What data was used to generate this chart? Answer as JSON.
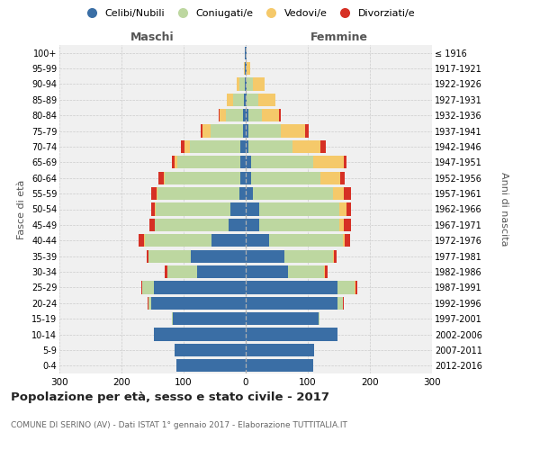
{
  "age_groups": [
    "0-4",
    "5-9",
    "10-14",
    "15-19",
    "20-24",
    "25-29",
    "30-34",
    "35-39",
    "40-44",
    "45-49",
    "50-54",
    "55-59",
    "60-64",
    "65-69",
    "70-74",
    "75-79",
    "80-84",
    "85-89",
    "90-94",
    "95-99",
    "100+"
  ],
  "birth_years": [
    "2012-2016",
    "2007-2011",
    "2002-2006",
    "1997-2001",
    "1992-1996",
    "1987-1991",
    "1982-1986",
    "1977-1981",
    "1972-1976",
    "1967-1971",
    "1962-1966",
    "1957-1961",
    "1952-1956",
    "1947-1951",
    "1942-1946",
    "1937-1941",
    "1932-1936",
    "1927-1931",
    "1922-1926",
    "1917-1921",
    "≤ 1916"
  ],
  "male": {
    "celibi": [
      112,
      115,
      148,
      118,
      152,
      148,
      78,
      88,
      55,
      28,
      25,
      10,
      8,
      8,
      8,
      5,
      4,
      3,
      2,
      1,
      1
    ],
    "coniugati": [
      0,
      0,
      0,
      1,
      4,
      18,
      48,
      68,
      108,
      118,
      120,
      132,
      122,
      102,
      82,
      52,
      28,
      18,
      8,
      1,
      0
    ],
    "vedovi": [
      0,
      0,
      0,
      0,
      0,
      0,
      0,
      0,
      1,
      1,
      2,
      2,
      2,
      4,
      8,
      12,
      10,
      10,
      4,
      1,
      0
    ],
    "divorziati": [
      0,
      0,
      0,
      0,
      2,
      2,
      4,
      4,
      8,
      8,
      5,
      8,
      8,
      5,
      6,
      4,
      2,
      0,
      0,
      0,
      0
    ]
  },
  "female": {
    "nubili": [
      108,
      110,
      148,
      118,
      148,
      148,
      68,
      62,
      38,
      22,
      22,
      12,
      8,
      8,
      4,
      4,
      4,
      2,
      2,
      1,
      1
    ],
    "coniugate": [
      0,
      0,
      0,
      1,
      8,
      28,
      58,
      78,
      118,
      128,
      128,
      128,
      112,
      100,
      72,
      52,
      22,
      18,
      10,
      1,
      0
    ],
    "vedove": [
      0,
      0,
      0,
      0,
      0,
      1,
      2,
      2,
      4,
      8,
      12,
      18,
      32,
      50,
      45,
      40,
      28,
      28,
      18,
      5,
      1
    ],
    "divorziate": [
      0,
      0,
      0,
      0,
      2,
      2,
      4,
      4,
      8,
      12,
      8,
      12,
      8,
      4,
      8,
      6,
      2,
      0,
      0,
      0,
      0
    ]
  },
  "colors": {
    "celibi": "#3A6EA5",
    "coniugati": "#BDD7A0",
    "vedovi": "#F5C96A",
    "divorziati": "#D63025"
  },
  "title": "Popolazione per età, sesso e stato civile - 2017",
  "subtitle": "COMUNE DI SERINO (AV) - Dati ISTAT 1° gennaio 2017 - Elaborazione TUTTITALIA.IT",
  "label_maschi": "Maschi",
  "label_femmine": "Femmine",
  "ylabel_left": "Fasce di età",
  "ylabel_right": "Anni di nascita",
  "xlim": 300,
  "bg_color": "#f0f0f0",
  "grid_color": "#cccccc"
}
